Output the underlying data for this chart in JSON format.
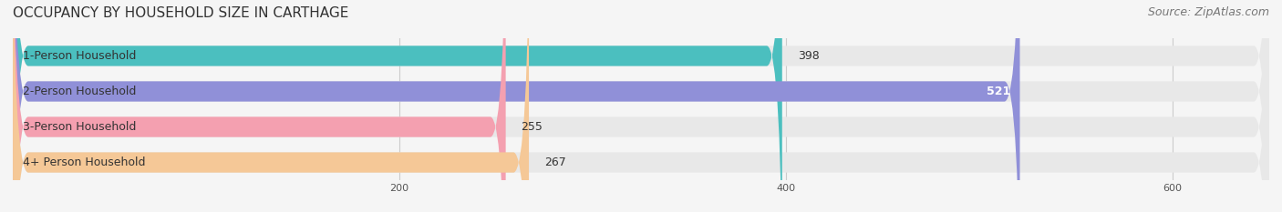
{
  "title": "OCCUPANCY BY HOUSEHOLD SIZE IN CARTHAGE",
  "source": "Source: ZipAtlas.com",
  "categories": [
    "1-Person Household",
    "2-Person Household",
    "3-Person Household",
    "4+ Person Household"
  ],
  "values": [
    398,
    521,
    255,
    267
  ],
  "bar_colors": [
    "#4BBFBF",
    "#9090D8",
    "#F4A0B0",
    "#F5C897"
  ],
  "label_colors": [
    "#333333",
    "#ffffff",
    "#333333",
    "#333333"
  ],
  "xlim": [
    0,
    650
  ],
  "xticks": [
    200,
    400,
    600
  ],
  "background_color": "#f0f0f0",
  "bar_background_color": "#e8e8e8",
  "title_fontsize": 11,
  "source_fontsize": 9,
  "bar_height": 0.55,
  "label_fontsize": 9,
  "category_fontsize": 9
}
